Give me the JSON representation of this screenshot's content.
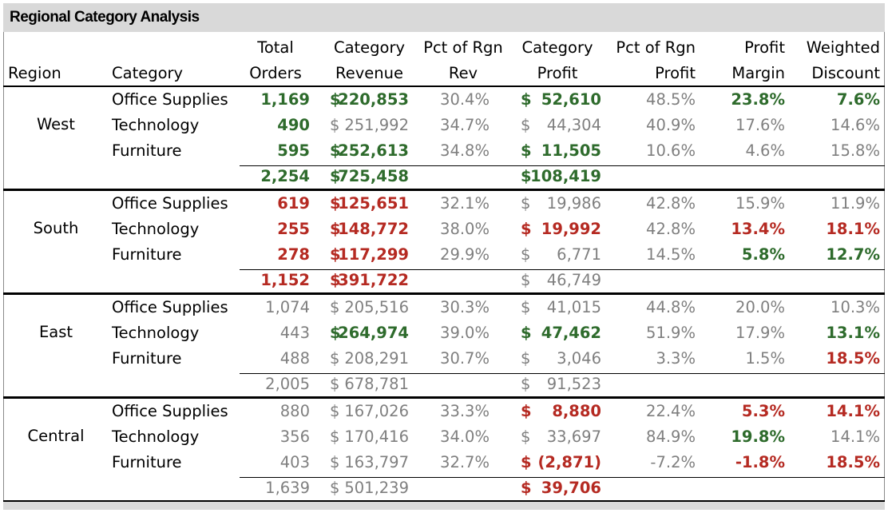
{
  "title": "Regional Category Analysis",
  "headers": {
    "region": "Region",
    "category": "Category",
    "total_orders_1": "Total",
    "total_orders_2": "Orders",
    "cat_rev_1": "Category",
    "cat_rev_2": "Revenue",
    "pct_rev_1": "Pct of Rgn",
    "pct_rev_2": "Rev",
    "cat_profit_1": "Category",
    "cat_profit_2": "Profit",
    "pct_profit_1": "Pct of Rgn",
    "pct_profit_2": "Profit",
    "margin_1": "Profit",
    "margin_2": "Margin",
    "discount_1": "Weighted",
    "discount_2": "Discount"
  },
  "currency": "$",
  "colors": {
    "green": "#2e6b2c",
    "red": "#b52a22",
    "gray": "#7f7f7f",
    "header_bg": "#d9d9d9"
  },
  "regions": [
    {
      "name": "West",
      "rows": [
        {
          "category": "Office Supplies",
          "orders": "1,169",
          "orders_s": "green",
          "revenue": "220,853",
          "revenue_s": "green",
          "pct_rev": "30.4%",
          "profit": "52,610",
          "profit_s": "green",
          "pct_profit": "48.5%",
          "margin": "23.8%",
          "margin_s": "green",
          "discount": "7.6%",
          "discount_s": "green"
        },
        {
          "category": "Technology",
          "orders": "490",
          "orders_s": "green",
          "revenue": "251,992",
          "revenue_s": "gray",
          "pct_rev": "34.7%",
          "profit": "44,304",
          "profit_s": "gray",
          "pct_profit": "40.9%",
          "margin": "17.6%",
          "margin_s": "gray",
          "discount": "14.6%",
          "discount_s": "gray"
        },
        {
          "category": "Furniture",
          "orders": "595",
          "orders_s": "green",
          "revenue": "252,613",
          "revenue_s": "green",
          "pct_rev": "34.8%",
          "profit": "11,505",
          "profit_s": "green",
          "pct_profit": "10.6%",
          "margin": "4.6%",
          "margin_s": "gray",
          "discount": "15.8%",
          "discount_s": "gray"
        }
      ],
      "total": {
        "orders": "2,254",
        "orders_s": "green",
        "revenue": "725,458",
        "revenue_s": "green",
        "profit": "108,419",
        "profit_s": "green"
      }
    },
    {
      "name": "South",
      "rows": [
        {
          "category": "Office Supplies",
          "orders": "619",
          "orders_s": "red",
          "revenue": "125,651",
          "revenue_s": "red",
          "pct_rev": "32.1%",
          "profit": "19,986",
          "profit_s": "gray",
          "pct_profit": "42.8%",
          "margin": "15.9%",
          "margin_s": "gray",
          "discount": "11.9%",
          "discount_s": "gray"
        },
        {
          "category": "Technology",
          "orders": "255",
          "orders_s": "red",
          "revenue": "148,772",
          "revenue_s": "red",
          "pct_rev": "38.0%",
          "profit": "19,992",
          "profit_s": "red",
          "pct_profit": "42.8%",
          "margin": "13.4%",
          "margin_s": "red",
          "discount": "18.1%",
          "discount_s": "red"
        },
        {
          "category": "Furniture",
          "orders": "278",
          "orders_s": "red",
          "revenue": "117,299",
          "revenue_s": "red",
          "pct_rev": "29.9%",
          "profit": "6,771",
          "profit_s": "gray",
          "pct_profit": "14.5%",
          "margin": "5.8%",
          "margin_s": "green",
          "discount": "12.7%",
          "discount_s": "green"
        }
      ],
      "total": {
        "orders": "1,152",
        "orders_s": "red",
        "revenue": "391,722",
        "revenue_s": "red",
        "profit": "46,749",
        "profit_s": "gray"
      }
    },
    {
      "name": "East",
      "rows": [
        {
          "category": "Office Supplies",
          "orders": "1,074",
          "orders_s": "gray",
          "revenue": "205,516",
          "revenue_s": "gray",
          "pct_rev": "30.3%",
          "profit": "41,015",
          "profit_s": "gray",
          "pct_profit": "44.8%",
          "margin": "20.0%",
          "margin_s": "gray",
          "discount": "10.3%",
          "discount_s": "gray"
        },
        {
          "category": "Technology",
          "orders": "443",
          "orders_s": "gray",
          "revenue": "264,974",
          "revenue_s": "green",
          "pct_rev": "39.0%",
          "profit": "47,462",
          "profit_s": "green",
          "pct_profit": "51.9%",
          "margin": "17.9%",
          "margin_s": "gray",
          "discount": "13.1%",
          "discount_s": "green"
        },
        {
          "category": "Furniture",
          "orders": "488",
          "orders_s": "gray",
          "revenue": "208,291",
          "revenue_s": "gray",
          "pct_rev": "30.7%",
          "profit": "3,046",
          "profit_s": "gray",
          "pct_profit": "3.3%",
          "margin": "1.5%",
          "margin_s": "gray",
          "discount": "18.5%",
          "discount_s": "red"
        }
      ],
      "total": {
        "orders": "2,005",
        "orders_s": "gray",
        "revenue": "678,781",
        "revenue_s": "gray",
        "profit": "91,523",
        "profit_s": "gray"
      }
    },
    {
      "name": "Central",
      "rows": [
        {
          "category": "Office Supplies",
          "orders": "880",
          "orders_s": "gray",
          "revenue": "167,026",
          "revenue_s": "gray",
          "pct_rev": "33.3%",
          "profit": "8,880",
          "profit_s": "red",
          "pct_profit": "22.4%",
          "margin": "5.3%",
          "margin_s": "red",
          "discount": "14.1%",
          "discount_s": "red"
        },
        {
          "category": "Technology",
          "orders": "356",
          "orders_s": "gray",
          "revenue": "170,416",
          "revenue_s": "gray",
          "pct_rev": "34.0%",
          "profit": "33,697",
          "profit_s": "gray",
          "pct_profit": "84.9%",
          "margin": "19.8%",
          "margin_s": "green",
          "discount": "14.1%",
          "discount_s": "gray"
        },
        {
          "category": "Furniture",
          "orders": "403",
          "orders_s": "gray",
          "revenue": "163,797",
          "revenue_s": "gray",
          "pct_rev": "32.7%",
          "profit": "(2,871)",
          "profit_s": "red",
          "pct_profit": "-7.2%",
          "margin": "-1.8%",
          "margin_s": "red",
          "discount": "18.5%",
          "discount_s": "red"
        }
      ],
      "total": {
        "orders": "1,639",
        "orders_s": "gray",
        "revenue": "501,239",
        "revenue_s": "gray",
        "profit": "39,706",
        "profit_s": "red"
      }
    }
  ]
}
